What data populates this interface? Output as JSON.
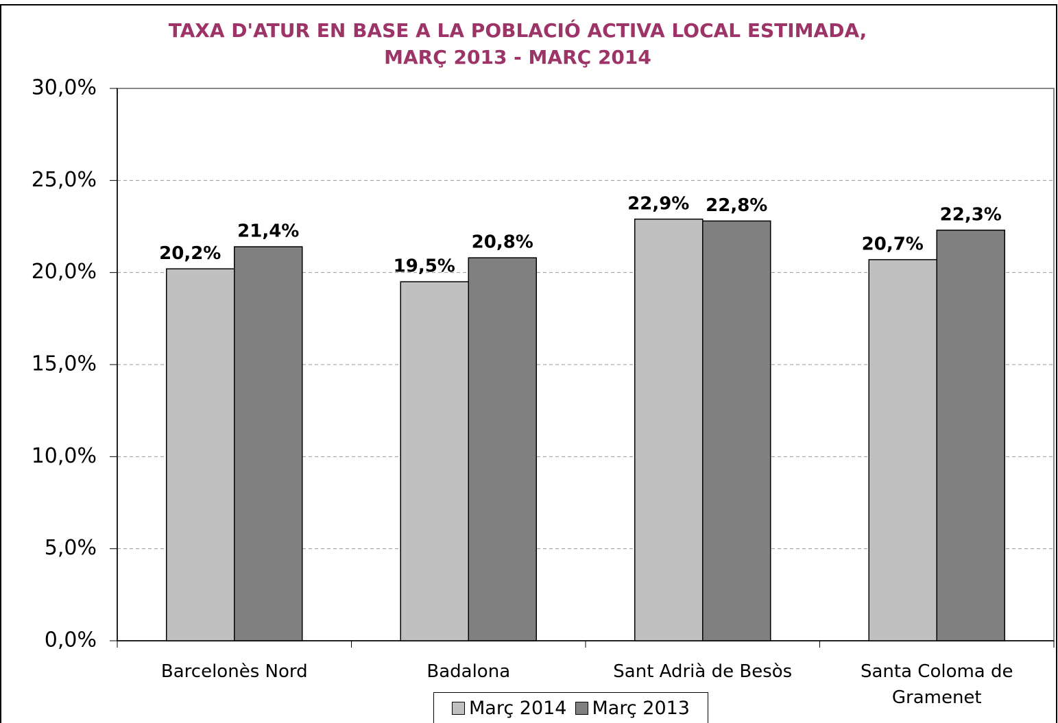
{
  "chart_data": {
    "type": "bar",
    "title": [
      "TAXA D'ATUR EN BASE A LA POBLACIÓ ACTIVA LOCAL ESTIMADA,",
      "MARÇ 2013 - MARÇ 2014"
    ],
    "categories": [
      "Barcelonès Nord",
      "Badalona",
      "Sant Adrià de Besòs",
      "Santa Coloma de Gramenet"
    ],
    "series": [
      {
        "name": "Març 2014",
        "color": "#c0c0c0",
        "values": [
          20.2,
          19.5,
          22.9,
          20.7
        ],
        "value_labels": [
          "20,2%",
          "19,5%",
          "22,9%",
          "20,7%"
        ]
      },
      {
        "name": "Març 2013",
        "color": "#808080",
        "values": [
          21.4,
          20.8,
          22.8,
          22.3
        ],
        "value_labels": [
          "21,4%",
          "20,8%",
          "22,8%",
          "22,3%"
        ]
      }
    ],
    "ylim": [
      0,
      30
    ],
    "yticks": [
      {
        "value": 0,
        "label": "0,0%"
      },
      {
        "value": 5,
        "label": "5,0%"
      },
      {
        "value": 10,
        "label": "10,0%"
      },
      {
        "value": 15,
        "label": "15,0%"
      },
      {
        "value": 20,
        "label": "20,0%"
      },
      {
        "value": 25,
        "label": "25,0%"
      },
      {
        "value": 30,
        "label": "30,0%"
      }
    ],
    "grid": true,
    "legend": "bottom"
  }
}
